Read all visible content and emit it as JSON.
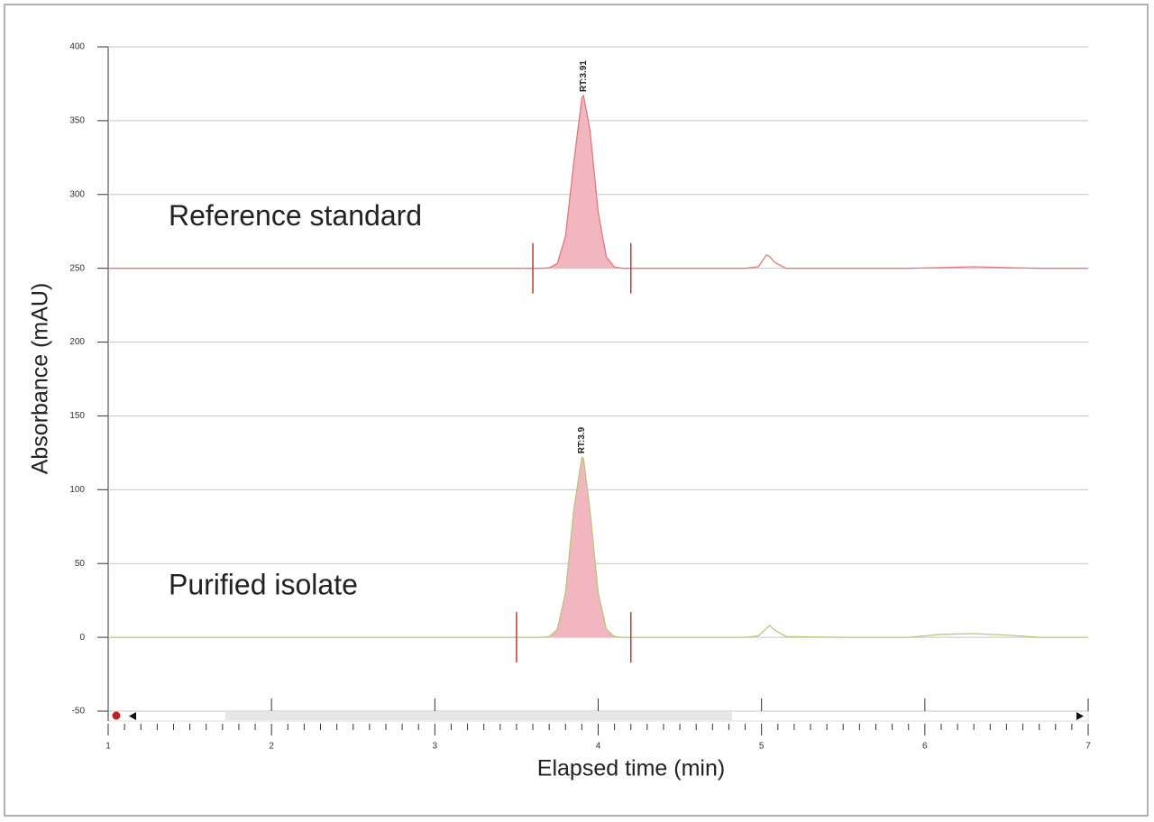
{
  "chart_data": {
    "type": "line",
    "xlabel": "Elapsed time (min)",
    "ylabel": "Absorbance (mAU)",
    "xlim": [
      1,
      7
    ],
    "ylim": [
      -50,
      400
    ],
    "xticks": [
      1,
      2,
      3,
      4,
      5,
      6,
      7
    ],
    "xminorticks": [
      1.1,
      1.2,
      1.3,
      1.4,
      1.5,
      1.6,
      1.7,
      1.8,
      1.9,
      2.1,
      2.2,
      2.3,
      2.4,
      2.5,
      2.6,
      2.7,
      2.8,
      2.9,
      3.1,
      3.2,
      3.3,
      3.4,
      3.5,
      3.6,
      3.7,
      3.8,
      3.9,
      4.1,
      4.2,
      4.3,
      4.4,
      4.5,
      4.6,
      4.7,
      4.8,
      4.9,
      5.1,
      5.2,
      5.3,
      5.4,
      5.5,
      5.6,
      5.7,
      5.8,
      5.9,
      6.1,
      6.2,
      6.3,
      6.4,
      6.5,
      6.6,
      6.7,
      6.8,
      6.9
    ],
    "yticks": [
      -50,
      0,
      50,
      100,
      150,
      200,
      250,
      300,
      350,
      400
    ],
    "grid": true,
    "fill_color": "#f2b6c1",
    "x": [
      1,
      2,
      3,
      3.4,
      3.5,
      3.6,
      3.65,
      3.7,
      3.75,
      3.8,
      3.85,
      3.9,
      3.91,
      3.95,
      4.0,
      4.05,
      4.1,
      4.15,
      4.2,
      4.3,
      4.5,
      4.9,
      4.98,
      5.03,
      5.05,
      5.08,
      5.15,
      5.5,
      5.9,
      6.1,
      6.3,
      6.5,
      6.7,
      7
    ],
    "series": [
      {
        "name": "Reference standard",
        "color": "#e07a7a",
        "values": [
          250,
          250,
          250,
          250,
          250,
          250,
          250,
          250.3,
          253.3,
          271.8,
          321,
          365.4,
          367,
          343.6,
          288,
          257.7,
          250.8,
          250,
          250,
          250,
          250,
          250,
          251,
          259,
          258,
          254,
          250,
          250,
          250,
          250.5,
          251,
          250.5,
          250,
          250
        ],
        "integration": [
          3.6,
          4.2
        ],
        "annotation": {
          "text": "RT:3.91",
          "x": 3.91,
          "y": 367
        }
      },
      {
        "name": "Purified isolate",
        "color": "#b7c77a",
        "values": [
          0,
          0,
          0,
          0,
          0,
          0,
          0,
          0.5,
          5.4,
          30.4,
          86.2,
          122,
          121.2,
          86.2,
          30.4,
          5.4,
          0.5,
          0,
          0,
          0,
          0,
          0,
          1,
          6,
          8,
          5,
          0.5,
          0,
          0,
          2,
          2.5,
          1.5,
          0,
          0
        ],
        "integration": [
          3.5,
          4.2
        ],
        "annotation": {
          "text": "RT:3.9",
          "x": 3.9,
          "y": 122
        }
      }
    ]
  }
}
